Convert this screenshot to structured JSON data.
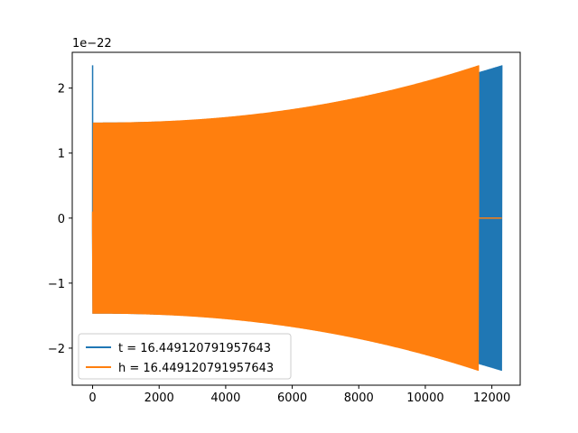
{
  "chart_data": {
    "type": "line",
    "title": "",
    "xlabel": "",
    "ylabel": "",
    "y_scale_label": "1e−22",
    "xlim": [
      -612,
      12852
    ],
    "ylim": [
      -2.57e-22,
      2.55e-22
    ],
    "x_ticks": [
      0,
      2000,
      4000,
      6000,
      8000,
      10000,
      12000
    ],
    "x_tick_labels": [
      "0",
      "2000",
      "4000",
      "6000",
      "8000",
      "10000",
      "12000"
    ],
    "y_ticks": [
      2,
      1,
      0,
      -1,
      -2
    ],
    "y_tick_labels": [
      "2",
      "1",
      "0",
      "−1",
      "−2"
    ],
    "grid": false,
    "legend_position": "lower-left",
    "series": [
      {
        "name": "t = 16.449120791957643",
        "color": "#1f77b4",
        "description_points": {
          "x_end": 12300,
          "initial_spike": 2.35e-22,
          "start_amplitude": 1.47e-22,
          "end_amplitude": 2.35e-22
        }
      },
      {
        "name": "h = 16.449120791957643",
        "color": "#ff7f0e",
        "description_points": {
          "x_end_oscillation": 11600,
          "x_end_flat": 12300,
          "start_amplitude": 1.47e-22,
          "end_amplitude": 2.35e-22
        }
      }
    ]
  }
}
